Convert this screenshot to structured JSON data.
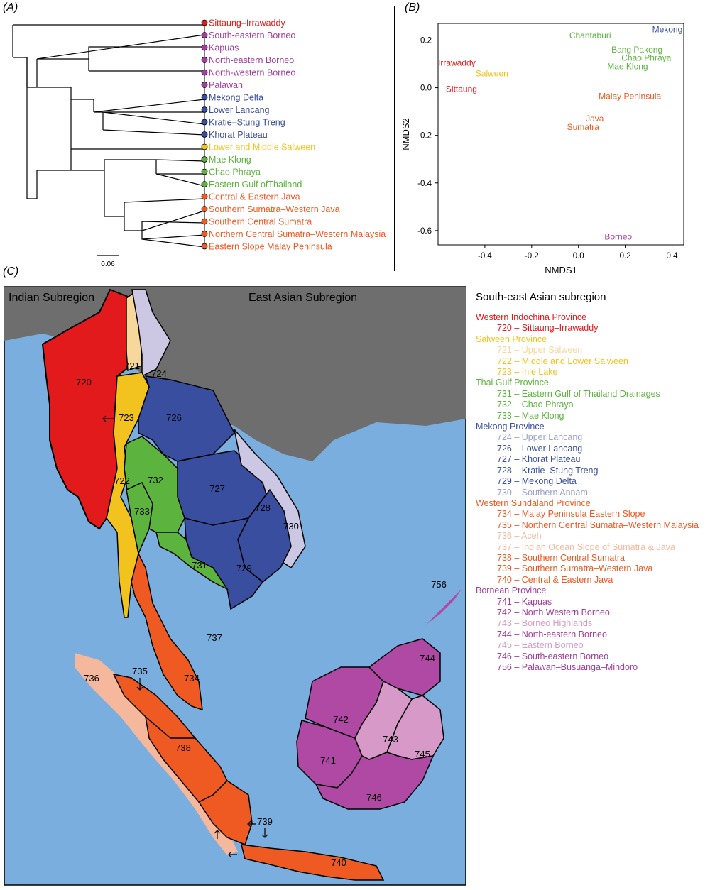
{
  "panels": {
    "a": "(A)",
    "b": "(B)",
    "c": "(C)"
  },
  "colors": {
    "red": "#e31a1c",
    "magenta": "#a53d9e",
    "blue": "#3a4ea0",
    "yellow": "#f2c21e",
    "green": "#5cb43e",
    "orange": "#ef5a22",
    "lightblue": "#9a9fcc",
    "pale_yellow": "#f7d79a",
    "pale_orange": "#f6b89c",
    "pale_magenta": "#d79ac8",
    "sea": "#7aaede",
    "land": "#6e6e6e"
  },
  "tree": {
    "tips": [
      {
        "label": "Sittaung–Irrawaddy",
        "color": "#e31a1c"
      },
      {
        "label": "South-eastern Borneo",
        "color": "#a53d9e"
      },
      {
        "label": "Kapuas",
        "color": "#a53d9e"
      },
      {
        "label": "North-eastern Borneo",
        "color": "#a53d9e"
      },
      {
        "label": "North-western Borneo",
        "color": "#a53d9e"
      },
      {
        "label": "Palawan",
        "color": "#a53d9e"
      },
      {
        "label": "Mekong Delta",
        "color": "#3a4ea0"
      },
      {
        "label": "Lower Lancang",
        "color": "#3a4ea0"
      },
      {
        "label": "Kratie–Stung Treng",
        "color": "#3a4ea0"
      },
      {
        "label": "Khorat Plateau",
        "color": "#3a4ea0"
      },
      {
        "label": "Lower and Middle Salween",
        "color": "#f2c21e"
      },
      {
        "label": "Mae Klong",
        "color": "#5cb43e"
      },
      {
        "label": "Chao Phraya",
        "color": "#5cb43e"
      },
      {
        "label": "Eastern Gulf ofThailand",
        "color": "#5cb43e"
      },
      {
        "label": "Central & Eastern Java",
        "color": "#ef5a22"
      },
      {
        "label": "Southern Sumatra–Western Java",
        "color": "#ef5a22"
      },
      {
        "label": "Southern Central Sumatra",
        "color": "#ef5a22"
      },
      {
        "label": "Northern Central Sumatra–Western Malaysia",
        "color": "#ef5a22"
      },
      {
        "label": "Eastern Slope Malay Peninsula",
        "color": "#ef5a22"
      }
    ],
    "scale_label": "0.06"
  },
  "chart_data": {
    "type": "scatter",
    "xlabel": "NMDS1",
    "ylabel": "NMDS2",
    "xlim": [
      -0.6,
      0.45
    ],
    "ylim": [
      -0.66,
      0.27
    ],
    "xticks": [
      -0.4,
      -0.2,
      0.0,
      0.2,
      0.4
    ],
    "yticks": [
      0.2,
      0.0,
      -0.2,
      -0.4,
      -0.6
    ],
    "points": [
      {
        "label": "Mekong",
        "x": 0.38,
        "y": 0.245,
        "color": "#3a4ea0"
      },
      {
        "label": "Chantaburi",
        "x": 0.05,
        "y": 0.22,
        "color": "#5cb43e"
      },
      {
        "label": "Bang Pakong",
        "x": 0.25,
        "y": 0.16,
        "color": "#5cb43e"
      },
      {
        "label": "Chao Phraya",
        "x": 0.29,
        "y": 0.125,
        "color": "#5cb43e"
      },
      {
        "label": "Mae Klong",
        "x": 0.21,
        "y": 0.09,
        "color": "#5cb43e"
      },
      {
        "label": "Irrawaddy",
        "x": -0.52,
        "y": 0.105,
        "color": "#e31a1c"
      },
      {
        "label": "Salween",
        "x": -0.37,
        "y": 0.06,
        "color": "#f2c21e"
      },
      {
        "label": "Sittaung",
        "x": -0.5,
        "y": -0.005,
        "color": "#e31a1c"
      },
      {
        "label": "Malay Peninsula",
        "x": 0.22,
        "y": -0.035,
        "color": "#ef5a22"
      },
      {
        "label": "Java",
        "x": 0.07,
        "y": -0.13,
        "color": "#ef5a22"
      },
      {
        "label": "Sumatra",
        "x": 0.02,
        "y": -0.165,
        "color": "#ef5a22"
      },
      {
        "label": "Borneo",
        "x": 0.17,
        "y": -0.625,
        "color": "#a53d9e"
      }
    ]
  },
  "map": {
    "subregion_indian": "Indian Subregion",
    "subregion_east_asian": "East Asian Subregion",
    "labels": [
      {
        "code": "720"
      },
      {
        "code": "721"
      },
      {
        "code": "722"
      },
      {
        "code": "723"
      },
      {
        "code": "724"
      },
      {
        "code": "726"
      },
      {
        "code": "727"
      },
      {
        "code": "728"
      },
      {
        "code": "729"
      },
      {
        "code": "730"
      },
      {
        "code": "731"
      },
      {
        "code": "732"
      },
      {
        "code": "733"
      },
      {
        "code": "734"
      },
      {
        "code": "735"
      },
      {
        "code": "736"
      },
      {
        "code": "737"
      },
      {
        "code": "738"
      },
      {
        "code": "739"
      },
      {
        "code": "740"
      },
      {
        "code": "741"
      },
      {
        "code": "742"
      },
      {
        "code": "743"
      },
      {
        "code": "744"
      },
      {
        "code": "745"
      },
      {
        "code": "746"
      },
      {
        "code": "756"
      }
    ]
  },
  "legend": {
    "title": "South-east Asian subregion",
    "rows": [
      {
        "text": "Western Indochina Province",
        "color": "#e31a1c",
        "kind": "prov"
      },
      {
        "text": "720 – Sittaung–Irrawaddy",
        "color": "#e31a1c",
        "kind": "item"
      },
      {
        "text": "Salween Province",
        "color": "#f2c21e",
        "kind": "prov"
      },
      {
        "text": "721 – Upper Salween",
        "color": "#f7d79a",
        "kind": "item"
      },
      {
        "text": "722 – Middle and Lower Salween",
        "color": "#f2c21e",
        "kind": "item"
      },
      {
        "text": "723 – Inle Lake",
        "color": "#f2c21e",
        "kind": "item"
      },
      {
        "text": "Thai Gulf Province",
        "color": "#5cb43e",
        "kind": "prov"
      },
      {
        "text": "731 – Eastern Gulf of Thailand Drainages",
        "color": "#5cb43e",
        "kind": "item"
      },
      {
        "text": "732 – Chao Phraya",
        "color": "#5cb43e",
        "kind": "item"
      },
      {
        "text": "733 – Mae Klong",
        "color": "#5cb43e",
        "kind": "item"
      },
      {
        "text": "Mekong Province",
        "color": "#3a4ea0",
        "kind": "prov"
      },
      {
        "text": "724 – Upper Lancang",
        "color": "#9a9fcc",
        "kind": "item"
      },
      {
        "text": "726 – Lower Lancang",
        "color": "#3a4ea0",
        "kind": "item"
      },
      {
        "text": "727 – Khorat Plateau",
        "color": "#3a4ea0",
        "kind": "item"
      },
      {
        "text": "728 – Kratie–Stung Treng",
        "color": "#3a4ea0",
        "kind": "item"
      },
      {
        "text": "729 – Mekong Delta",
        "color": "#3a4ea0",
        "kind": "item"
      },
      {
        "text": "730 – Southern Annam",
        "color": "#9a9fcc",
        "kind": "item"
      },
      {
        "text": "Western Sundaland Province",
        "color": "#ef5a22",
        "kind": "prov"
      },
      {
        "text": "734 – Malay Peninsula Eastern Slope",
        "color": "#ef5a22",
        "kind": "item"
      },
      {
        "text": "735 – Northern Central Sumatra–Western Malaysia",
        "color": "#ef5a22",
        "kind": "item"
      },
      {
        "text": "736 – Aceh",
        "color": "#f6b89c",
        "kind": "item"
      },
      {
        "text": "737 – Indian Ocean Slope of Sumatra & Java",
        "color": "#f6b89c",
        "kind": "item"
      },
      {
        "text": "738 – Southern Central Sumatra",
        "color": "#ef5a22",
        "kind": "item"
      },
      {
        "text": "739 – Southern Sumatra–Western Java",
        "color": "#ef5a22",
        "kind": "item"
      },
      {
        "text": "740 – Central & Eastern Java",
        "color": "#ef5a22",
        "kind": "item"
      },
      {
        "text": "Bornean Province",
        "color": "#a53d9e",
        "kind": "prov"
      },
      {
        "text": "741 – Kapuas",
        "color": "#a53d9e",
        "kind": "item"
      },
      {
        "text": "742 – North Western Borneo",
        "color": "#a53d9e",
        "kind": "item"
      },
      {
        "text": "743 – Borneo Highlands",
        "color": "#d79ac8",
        "kind": "item"
      },
      {
        "text": "744 – North-eastern Borneo",
        "color": "#a53d9e",
        "kind": "item"
      },
      {
        "text": "745 – Eastern Borneo",
        "color": "#d79ac8",
        "kind": "item"
      },
      {
        "text": "746 – South-eastern Borneo",
        "color": "#a53d9e",
        "kind": "item"
      },
      {
        "text": "756 – Palawan–Busuanga–Mindoro",
        "color": "#a53d9e",
        "kind": "item"
      }
    ]
  }
}
